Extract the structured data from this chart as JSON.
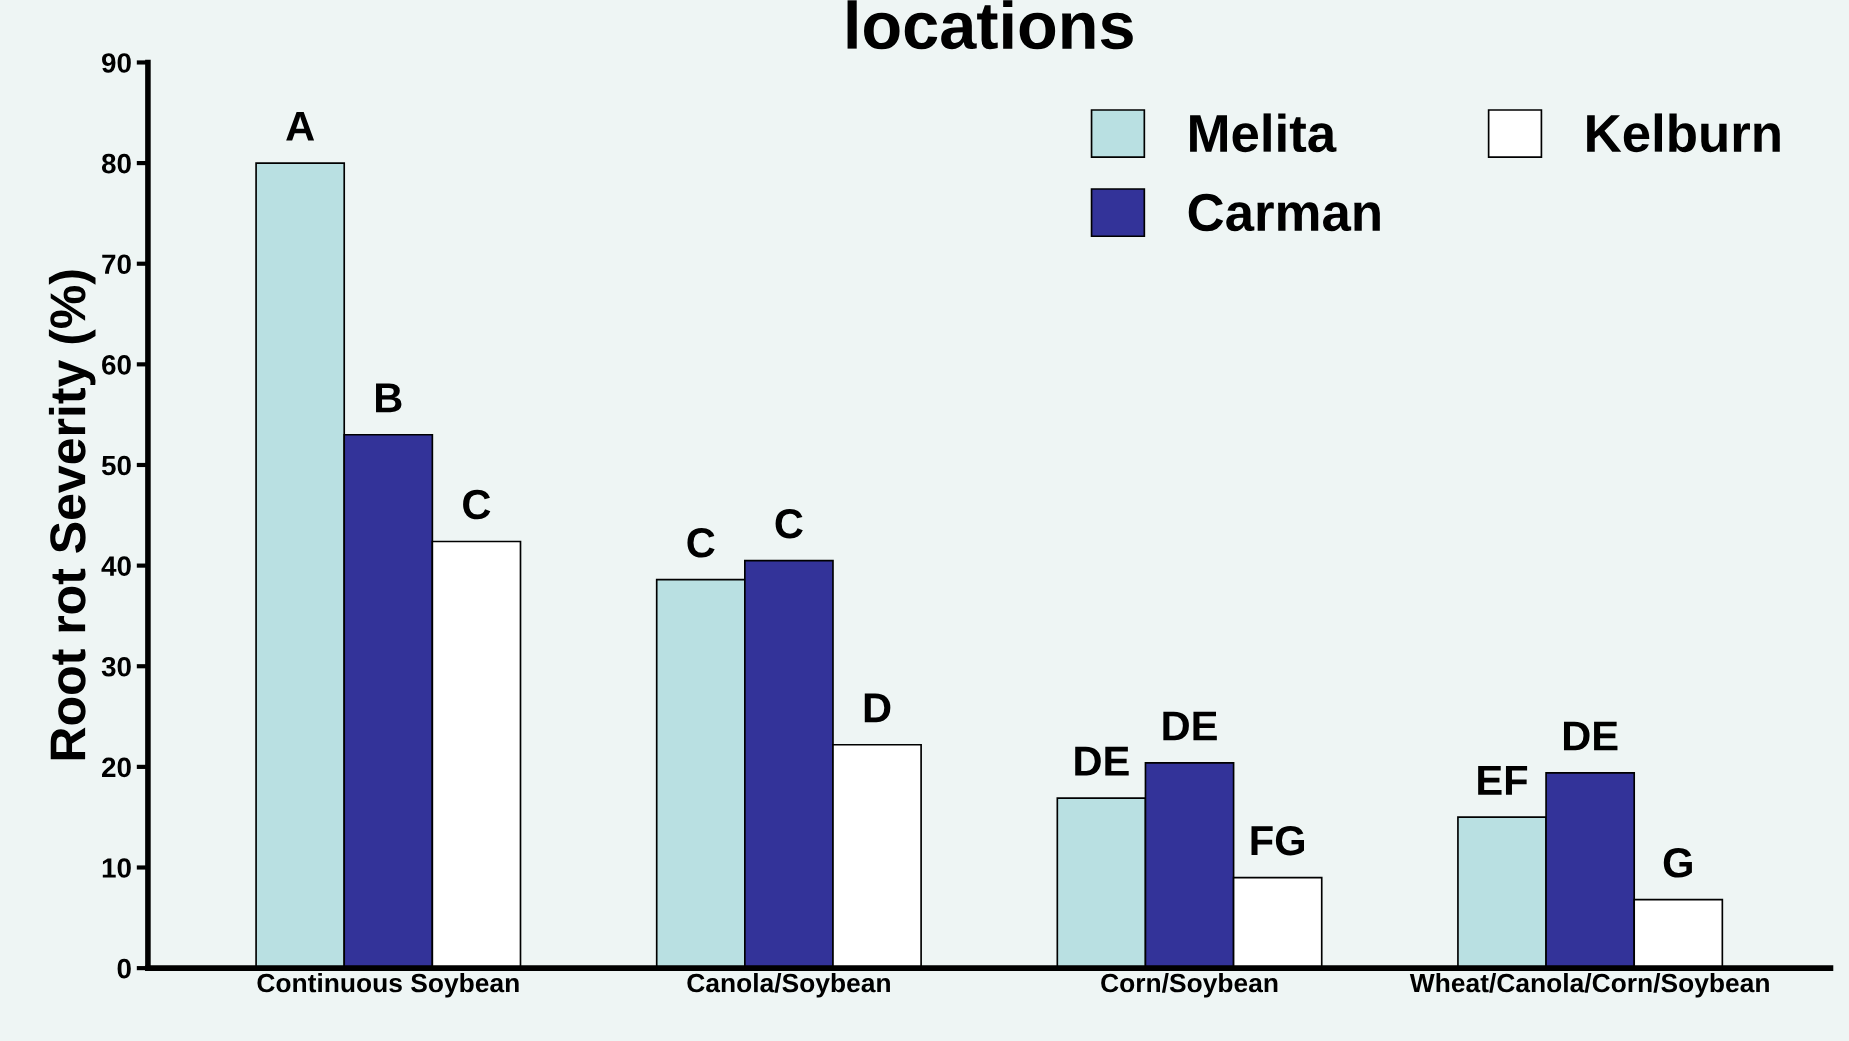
{
  "chart_data": {
    "type": "bar",
    "title": "locations",
    "ylabel": "Root rot Severity (%)",
    "categories": [
      "Continuous Soybean",
      "Canola/Soybean",
      "Corn/Soybean",
      "Wheat/Canola/Corn/Soybean"
    ],
    "series": [
      {
        "name": "Melita",
        "color": "#b9e0e2",
        "values": [
          80,
          38.6,
          16.9,
          15.0
        ],
        "value_labels": [
          "A",
          "C",
          "DE",
          "EF"
        ]
      },
      {
        "name": "Carman",
        "color": "#333399",
        "values": [
          53.0,
          40.5,
          20.4,
          19.4
        ],
        "value_labels": [
          "B",
          "C",
          "DE",
          "DE"
        ]
      },
      {
        "name": "Kelburn",
        "color": "#ffffff",
        "values": [
          42.4,
          22.2,
          9.0,
          6.8
        ],
        "value_labels": [
          "C",
          "D",
          "FG",
          "G"
        ]
      }
    ],
    "ylim": [
      0,
      90
    ],
    "yticks": [
      0,
      10,
      20,
      30,
      40,
      50,
      60,
      70,
      80,
      90
    ],
    "grid": false,
    "legend": "top right"
  }
}
